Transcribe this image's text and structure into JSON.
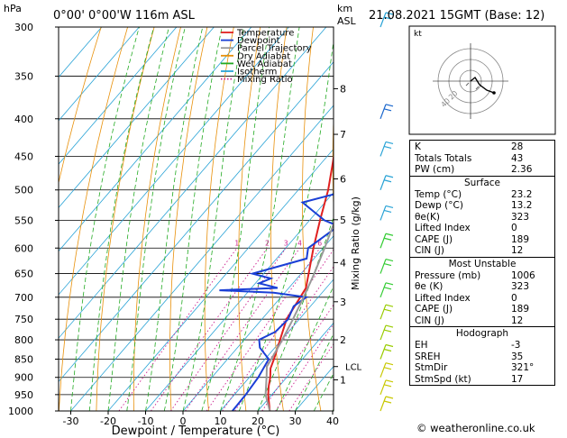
{
  "header": {
    "location": "0°00' 0°00'W 116m ASL",
    "datetime": "21.08.2021 15GMT (Base: 12)",
    "hpa_unit": "hPa",
    "km_unit": "km",
    "asl_unit": "ASL"
  },
  "legend": [
    {
      "label": "Temperature",
      "color": "#e02020",
      "style": "solid"
    },
    {
      "label": "Dewpoint",
      "color": "#1a3fd6",
      "style": "solid"
    },
    {
      "label": "Parcel Trajectory",
      "color": "#999999",
      "style": "solid"
    },
    {
      "label": "Dry Adiabat",
      "color": "#e8900a",
      "style": "solid"
    },
    {
      "label": "Wet Adiabat",
      "color": "#22aa22",
      "style": "solid"
    },
    {
      "label": "Isotherm",
      "color": "#29a3d6",
      "style": "solid"
    },
    {
      "label": "Mixing Ratio",
      "color": "#cc1f8e",
      "style": "dotted"
    }
  ],
  "chart_data": {
    "type": "skew-t",
    "xlabel": "Dewpoint / Temperature (°C)",
    "ylabel": "hPa",
    "right_axis_label": "Mixing Ratio (g/kg)",
    "x_ticks": [
      -30,
      -20,
      -10,
      0,
      10,
      20,
      30,
      40
    ],
    "pressure_levels": [
      300,
      350,
      400,
      450,
      500,
      550,
      600,
      650,
      700,
      750,
      800,
      850,
      900,
      950,
      1000
    ],
    "pressure_range": [
      300,
      1000
    ],
    "height_km_ticks": [
      {
        "label": "1",
        "p": 907
      },
      {
        "label": "2",
        "p": 800
      },
      {
        "label": "3",
        "p": 710
      },
      {
        "label": "4",
        "p": 628
      },
      {
        "label": "5",
        "p": 549
      },
      {
        "label": "6",
        "p": 483
      },
      {
        "label": "7",
        "p": 420
      },
      {
        "label": "8",
        "p": 364
      }
    ],
    "lcl": {
      "label": "LCL",
      "p": 870
    },
    "mixing_ratio_labels": [
      "1",
      "2",
      "3",
      "4",
      "6",
      "8",
      "10",
      "16",
      "20",
      "25"
    ],
    "mixing_ratio_values": [
      1,
      2,
      3,
      4,
      6,
      8,
      10,
      16,
      20,
      25
    ],
    "series": [
      {
        "name": "Temperature",
        "color": "#e02020",
        "points": [
          [
            1000,
            23.2
          ],
          [
            950,
            19
          ],
          [
            925,
            17.2
          ],
          [
            900,
            15.6
          ],
          [
            875,
            13.6
          ],
          [
            850,
            12.4
          ],
          [
            800,
            9.6
          ],
          [
            750,
            6.6
          ],
          [
            700,
            5.2
          ],
          [
            680,
            4.6
          ],
          [
            650,
            2
          ],
          [
            600,
            -2.6
          ],
          [
            550,
            -7.2
          ],
          [
            500,
            -12
          ],
          [
            450,
            -18.2
          ],
          [
            400,
            -25
          ],
          [
            350,
            -31.8
          ],
          [
            300,
            -40.2
          ]
        ]
      },
      {
        "name": "Dewpoint",
        "color": "#1a3fd6",
        "points": [
          [
            1000,
            13.2
          ],
          [
            950,
            13
          ],
          [
            900,
            12.4
          ],
          [
            850,
            11
          ],
          [
            820,
            6
          ],
          [
            800,
            4
          ],
          [
            780,
            6.5
          ],
          [
            750,
            7
          ],
          [
            720,
            5.5
          ],
          [
            700,
            6.8
          ],
          [
            690,
            -3
          ],
          [
            685,
            -18
          ],
          [
            680,
            -3
          ],
          [
            670,
            -9
          ],
          [
            660,
            -7
          ],
          [
            650,
            -13
          ],
          [
            620,
            -2
          ],
          [
            600,
            -4
          ],
          [
            560,
            -1
          ],
          [
            550,
            -6
          ],
          [
            520,
            -16
          ],
          [
            500,
            -6
          ],
          [
            450,
            -15
          ],
          [
            400,
            -25
          ],
          [
            380,
            -20
          ],
          [
            350,
            -25
          ],
          [
            300,
            -29
          ]
        ]
      },
      {
        "name": "Parcel Trajectory",
        "color": "#999999",
        "points": [
          [
            1000,
            23.2
          ],
          [
            950,
            18.3
          ],
          [
            900,
            14.6
          ],
          [
            870,
            12.2
          ],
          [
            850,
            11.7
          ],
          [
            800,
            10.2
          ],
          [
            750,
            8.3
          ],
          [
            700,
            6.1
          ],
          [
            650,
            3.5
          ],
          [
            600,
            0.4
          ],
          [
            550,
            -3.2
          ],
          [
            500,
            -8.0
          ],
          [
            450,
            -13.8
          ],
          [
            400,
            -21.2
          ],
          [
            350,
            -30.5
          ],
          [
            300,
            -42.0
          ]
        ]
      }
    ],
    "wind_barbs": [
      {
        "p": 1000,
        "color": "#c8c800"
      },
      {
        "p": 950,
        "color": "#c8c800"
      },
      {
        "p": 900,
        "color": "#c8c800"
      },
      {
        "p": 850,
        "color": "#99cc00"
      },
      {
        "p": 800,
        "color": "#99cc00"
      },
      {
        "p": 750,
        "color": "#99cc00"
      },
      {
        "p": 700,
        "color": "#33cc33"
      },
      {
        "p": 650,
        "color": "#33cc33"
      },
      {
        "p": 600,
        "color": "#33cc33"
      },
      {
        "p": 550,
        "color": "#29a3d6"
      },
      {
        "p": 500,
        "color": "#29a3d6"
      },
      {
        "p": 450,
        "color": "#29a3d6"
      },
      {
        "p": 400,
        "color": "#1a66cc"
      },
      {
        "p": 300,
        "color": "#29a3d6"
      }
    ]
  },
  "hodograph": {
    "unit": "kt",
    "ring_labels": [
      "20",
      "40"
    ]
  },
  "indices": {
    "rows": [
      {
        "label": "K",
        "value": "28"
      },
      {
        "label": "Totals Totals",
        "value": "43"
      },
      {
        "label": "PW (cm)",
        "value": "2.36"
      }
    ]
  },
  "surface": {
    "title": "Surface",
    "rows": [
      {
        "label": "Temp (°C)",
        "value": "23.2"
      },
      {
        "label": "Dewp (°C)",
        "value": "13.2"
      },
      {
        "label": "θe(K)",
        "value": "323"
      },
      {
        "label": "Lifted Index",
        "value": "0"
      },
      {
        "label": "CAPE (J)",
        "value": "189"
      },
      {
        "label": "CIN (J)",
        "value": "12"
      }
    ]
  },
  "most_unstable": {
    "title": "Most Unstable",
    "rows": [
      {
        "label": "Pressure (mb)",
        "value": "1006"
      },
      {
        "label": "θe (K)",
        "value": "323"
      },
      {
        "label": "Lifted Index",
        "value": "0"
      },
      {
        "label": "CAPE (J)",
        "value": "189"
      },
      {
        "label": "CIN (J)",
        "value": "12"
      }
    ]
  },
  "hodograph_params": {
    "title": "Hodograph",
    "rows": [
      {
        "label": "EH",
        "value": "-3"
      },
      {
        "label": "SREH",
        "value": "35"
      },
      {
        "label": "StmDir",
        "value": "321°"
      },
      {
        "label": "StmSpd (kt)",
        "value": "17"
      }
    ]
  },
  "footer": {
    "credit": "© weatheronline.co.uk"
  }
}
